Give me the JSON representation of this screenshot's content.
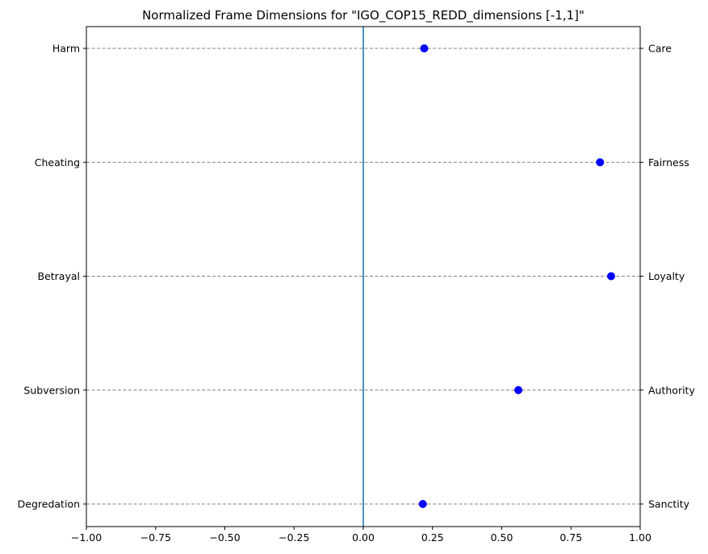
{
  "chart_data": {
    "type": "scatter",
    "title": "Normalized Frame Dimensions for \"IGO_COP15_REDD_dimensions [-1,1]\"",
    "xlabel": "",
    "ylabel": "",
    "xlim": [
      -1,
      1
    ],
    "x_ticks": [
      "−1.00",
      "−0.75",
      "−0.50",
      "−0.25",
      "0.00",
      "0.25",
      "0.50",
      "0.75",
      "1.00"
    ],
    "x_tick_values": [
      -1,
      -0.75,
      -0.5,
      -0.25,
      0,
      0.25,
      0.5,
      0.75,
      1
    ],
    "left_labels": [
      "Harm",
      "Cheating",
      "Betrayal",
      "Subversion",
      "Degredation"
    ],
    "right_labels": [
      "Care",
      "Fairness",
      "Loyalty",
      "Authority",
      "Sanctity"
    ],
    "values": [
      0.22,
      0.855,
      0.895,
      0.56,
      0.215
    ],
    "vertical_line_x": 0,
    "grid": "horizontal dashed",
    "colors": {
      "points": "#0000ff",
      "zero_line": "#1f77b4",
      "grid": "#808080"
    }
  }
}
